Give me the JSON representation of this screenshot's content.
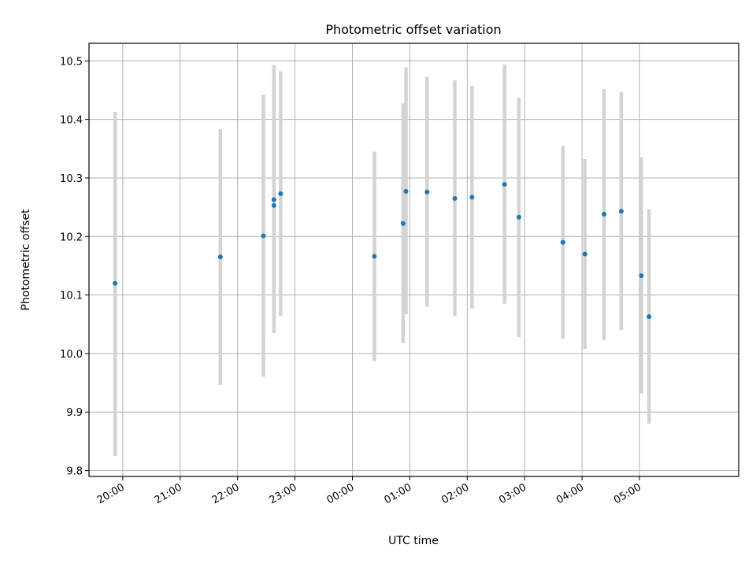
{
  "chart_data": {
    "type": "scatter",
    "title": "Photometric offset variation",
    "xlabel": "UTC time",
    "ylabel": "Photometric offset",
    "x_ticks": [
      "20:00",
      "21:00",
      "22:00",
      "23:00",
      "00:00",
      "01:00",
      "02:00",
      "03:00",
      "04:00",
      "05:00"
    ],
    "y_ticks": [
      "9.8",
      "9.9",
      "10.0",
      "10.1",
      "10.2",
      "10.3",
      "10.4",
      "10.5"
    ],
    "ylim": [
      9.79,
      10.53
    ],
    "grid": true,
    "colors": {
      "point": "#1f77b4",
      "errorbar": "#d3d3d3",
      "grid": "#b0b0b0",
      "axis": "#000000"
    },
    "points": [
      {
        "x": "19:52",
        "y": 10.12,
        "y_low": 9.825,
        "y_high": 10.413
      },
      {
        "x": "21:42",
        "y": 10.165,
        "y_low": 9.946,
        "y_high": 10.383
      },
      {
        "x": "22:27",
        "y": 10.201,
        "y_low": 9.96,
        "y_high": 10.442
      },
      {
        "x": "22:38",
        "y": 10.263,
        "y_low": 10.035,
        "y_high": 10.493
      },
      {
        "x": "22:38",
        "y": 10.253,
        "y_low": 10.035,
        "y_high": 10.47
      },
      {
        "x": "22:45",
        "y": 10.273,
        "y_low": 10.064,
        "y_high": 10.482
      },
      {
        "x": "00:23",
        "y": 10.166,
        "y_low": 9.987,
        "y_high": 10.345
      },
      {
        "x": "00:53",
        "y": 10.222,
        "y_low": 10.018,
        "y_high": 10.427
      },
      {
        "x": "00:56",
        "y": 10.277,
        "y_low": 10.067,
        "y_high": 10.489
      },
      {
        "x": "01:18",
        "y": 10.276,
        "y_low": 10.08,
        "y_high": 10.473
      },
      {
        "x": "01:47",
        "y": 10.265,
        "y_low": 10.064,
        "y_high": 10.467
      },
      {
        "x": "02:05",
        "y": 10.267,
        "y_low": 10.077,
        "y_high": 10.457
      },
      {
        "x": "02:39",
        "y": 10.289,
        "y_low": 10.085,
        "y_high": 10.494
      },
      {
        "x": "02:54",
        "y": 10.233,
        "y_low": 10.028,
        "y_high": 10.437
      },
      {
        "x": "03:40",
        "y": 10.19,
        "y_low": 10.025,
        "y_high": 10.355
      },
      {
        "x": "04:03",
        "y": 10.17,
        "y_low": 10.008,
        "y_high": 10.332
      },
      {
        "x": "04:23",
        "y": 10.238,
        "y_low": 10.023,
        "y_high": 10.452
      },
      {
        "x": "04:41",
        "y": 10.243,
        "y_low": 10.04,
        "y_high": 10.447
      },
      {
        "x": "05:02",
        "y": 10.133,
        "y_low": 9.932,
        "y_high": 10.335
      },
      {
        "x": "05:10",
        "y": 10.063,
        "y_low": 9.88,
        "y_high": 10.246
      }
    ]
  }
}
